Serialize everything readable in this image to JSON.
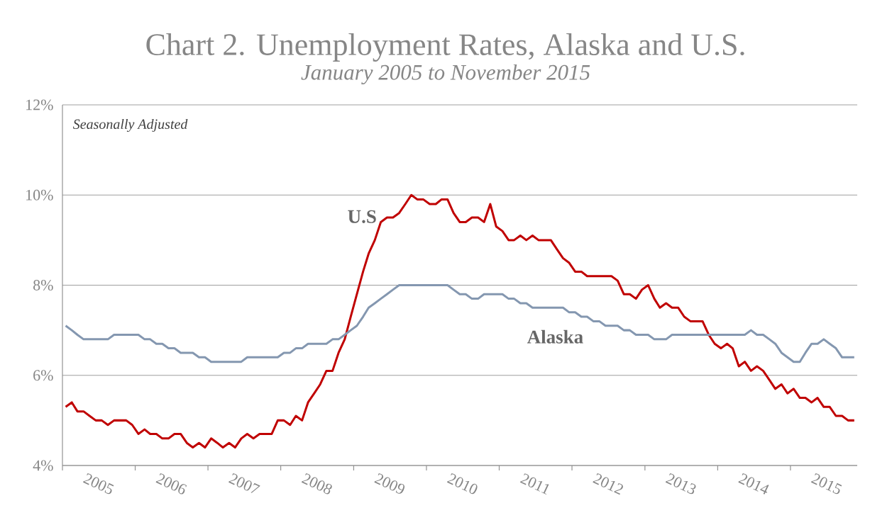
{
  "chart_data": {
    "type": "line",
    "title": "Chart 2. Unemployment Rates, Alaska and U.S.",
    "subtitle": "January 2005 to November 2015",
    "annotations": [
      "Seasonally Adjusted"
    ],
    "x": [
      "2005-01",
      "2005-02",
      "2005-03",
      "2005-04",
      "2005-05",
      "2005-06",
      "2005-07",
      "2005-08",
      "2005-09",
      "2005-10",
      "2005-11",
      "2005-12",
      "2006-01",
      "2006-02",
      "2006-03",
      "2006-04",
      "2006-05",
      "2006-06",
      "2006-07",
      "2006-08",
      "2006-09",
      "2006-10",
      "2006-11",
      "2006-12",
      "2007-01",
      "2007-02",
      "2007-03",
      "2007-04",
      "2007-05",
      "2007-06",
      "2007-07",
      "2007-08",
      "2007-09",
      "2007-10",
      "2007-11",
      "2007-12",
      "2008-01",
      "2008-02",
      "2008-03",
      "2008-04",
      "2008-05",
      "2008-06",
      "2008-07",
      "2008-08",
      "2008-09",
      "2008-10",
      "2008-11",
      "2008-12",
      "2009-01",
      "2009-02",
      "2009-03",
      "2009-04",
      "2009-05",
      "2009-06",
      "2009-07",
      "2009-08",
      "2009-09",
      "2009-10",
      "2009-11",
      "2009-12",
      "2010-01",
      "2010-02",
      "2010-03",
      "2010-04",
      "2010-05",
      "2010-06",
      "2010-07",
      "2010-08",
      "2010-09",
      "2010-10",
      "2010-11",
      "2010-12",
      "2011-01",
      "2011-02",
      "2011-03",
      "2011-04",
      "2011-05",
      "2011-06",
      "2011-07",
      "2011-08",
      "2011-09",
      "2011-10",
      "2011-11",
      "2011-12",
      "2012-01",
      "2012-02",
      "2012-03",
      "2012-04",
      "2012-05",
      "2012-06",
      "2012-07",
      "2012-08",
      "2012-09",
      "2012-10",
      "2012-11",
      "2012-12",
      "2013-01",
      "2013-02",
      "2013-03",
      "2013-04",
      "2013-05",
      "2013-06",
      "2013-07",
      "2013-08",
      "2013-09",
      "2013-10",
      "2013-11",
      "2013-12",
      "2014-01",
      "2014-02",
      "2014-03",
      "2014-04",
      "2014-05",
      "2014-06",
      "2014-07",
      "2014-08",
      "2014-09",
      "2014-10",
      "2014-11",
      "2014-12",
      "2015-01",
      "2015-02",
      "2015-03",
      "2015-04",
      "2015-05",
      "2015-06",
      "2015-07",
      "2015-08",
      "2015-09",
      "2015-10",
      "2015-11"
    ],
    "series": [
      {
        "name": "U.S",
        "color": "#c00000",
        "values": [
          5.3,
          5.4,
          5.2,
          5.2,
          5.1,
          5.0,
          5.0,
          4.9,
          5.0,
          5.0,
          5.0,
          4.9,
          4.7,
          4.8,
          4.7,
          4.7,
          4.6,
          4.6,
          4.7,
          4.7,
          4.5,
          4.4,
          4.5,
          4.4,
          4.6,
          4.5,
          4.4,
          4.5,
          4.4,
          4.6,
          4.7,
          4.6,
          4.7,
          4.7,
          4.7,
          5.0,
          5.0,
          4.9,
          5.1,
          5.0,
          5.4,
          5.6,
          5.8,
          6.1,
          6.1,
          6.5,
          6.8,
          7.3,
          7.8,
          8.3,
          8.7,
          9.0,
          9.4,
          9.5,
          9.5,
          9.6,
          9.8,
          10.0,
          9.9,
          9.9,
          9.8,
          9.8,
          9.9,
          9.9,
          9.6,
          9.4,
          9.4,
          9.5,
          9.5,
          9.4,
          9.8,
          9.3,
          9.2,
          9.0,
          9.0,
          9.1,
          9.0,
          9.1,
          9.0,
          9.0,
          9.0,
          8.8,
          8.6,
          8.5,
          8.3,
          8.3,
          8.2,
          8.2,
          8.2,
          8.2,
          8.2,
          8.1,
          7.8,
          7.8,
          7.7,
          7.9,
          8.0,
          7.7,
          7.5,
          7.6,
          7.5,
          7.5,
          7.3,
          7.2,
          7.2,
          7.2,
          6.9,
          6.7,
          6.6,
          6.7,
          6.6,
          6.2,
          6.3,
          6.1,
          6.2,
          6.1,
          5.9,
          5.7,
          5.8,
          5.6,
          5.7,
          5.5,
          5.5,
          5.4,
          5.5,
          5.3,
          5.3,
          5.1,
          5.1,
          5.0,
          5.0
        ]
      },
      {
        "name": "Alaska",
        "color": "#8497b0",
        "values": [
          7.1,
          7.0,
          6.9,
          6.8,
          6.8,
          6.8,
          6.8,
          6.8,
          6.9,
          6.9,
          6.9,
          6.9,
          6.9,
          6.8,
          6.8,
          6.7,
          6.7,
          6.6,
          6.6,
          6.5,
          6.5,
          6.5,
          6.4,
          6.4,
          6.3,
          6.3,
          6.3,
          6.3,
          6.3,
          6.3,
          6.4,
          6.4,
          6.4,
          6.4,
          6.4,
          6.4,
          6.5,
          6.5,
          6.6,
          6.6,
          6.7,
          6.7,
          6.7,
          6.7,
          6.8,
          6.8,
          6.9,
          7.0,
          7.1,
          7.3,
          7.5,
          7.6,
          7.7,
          7.8,
          7.9,
          8.0,
          8.0,
          8.0,
          8.0,
          8.0,
          8.0,
          8.0,
          8.0,
          8.0,
          7.9,
          7.8,
          7.8,
          7.7,
          7.7,
          7.8,
          7.8,
          7.8,
          7.8,
          7.7,
          7.7,
          7.6,
          7.6,
          7.5,
          7.5,
          7.5,
          7.5,
          7.5,
          7.5,
          7.4,
          7.4,
          7.3,
          7.3,
          7.2,
          7.2,
          7.1,
          7.1,
          7.1,
          7.0,
          7.0,
          6.9,
          6.9,
          6.9,
          6.8,
          6.8,
          6.8,
          6.9,
          6.9,
          6.9,
          6.9,
          6.9,
          6.9,
          6.9,
          6.9,
          6.9,
          6.9,
          6.9,
          6.9,
          6.9,
          7.0,
          6.9,
          6.9,
          6.8,
          6.7,
          6.5,
          6.4,
          6.3,
          6.3,
          6.5,
          6.7,
          6.7,
          6.8,
          6.7,
          6.6,
          6.4,
          6.4,
          6.4
        ]
      }
    ],
    "xlim": [
      "2004-12-16",
      "2015-11-16"
    ],
    "xticks": [
      {
        "value": "2004-12-16",
        "label": null
      },
      {
        "value": "2005-12-16",
        "label": null
      },
      {
        "value": "2006-12-16",
        "label": null
      },
      {
        "value": "2007-12-16",
        "label": null
      },
      {
        "value": "2008-12-16",
        "label": null
      },
      {
        "value": "2009-12-16",
        "label": null
      },
      {
        "value": "2010-12-16",
        "label": null
      },
      {
        "value": "2011-12-16",
        "label": null
      },
      {
        "value": "2012-12-16",
        "label": null
      },
      {
        "value": "2013-12-16",
        "label": null
      },
      {
        "value": "2014-12-16",
        "label": null
      },
      {
        "value": "2005-06-16",
        "label": "2005"
      },
      {
        "value": "2006-06-16",
        "label": "2006"
      },
      {
        "value": "2007-06-16",
        "label": "2007"
      },
      {
        "value": "2008-06-16",
        "label": "2008"
      },
      {
        "value": "2009-06-16",
        "label": "2009"
      },
      {
        "value": "2010-06-16",
        "label": "2010"
      },
      {
        "value": "2011-06-16",
        "label": "2011"
      },
      {
        "value": "2012-06-16",
        "label": "2012"
      },
      {
        "value": "2013-06-16",
        "label": "2013"
      },
      {
        "value": "2014-06-16",
        "label": "2014"
      },
      {
        "value": "2015-06-16",
        "label": "2015"
      }
    ],
    "ylim": [
      4,
      12
    ],
    "yticks": [
      {
        "value": 4,
        "label": "4%"
      },
      {
        "value": 6,
        "label": "6%"
      },
      {
        "value": 8,
        "label": "8%"
      },
      {
        "value": 10,
        "label": "10%"
      },
      {
        "value": 12,
        "label": "12%"
      }
    ],
    "grid": "y"
  }
}
